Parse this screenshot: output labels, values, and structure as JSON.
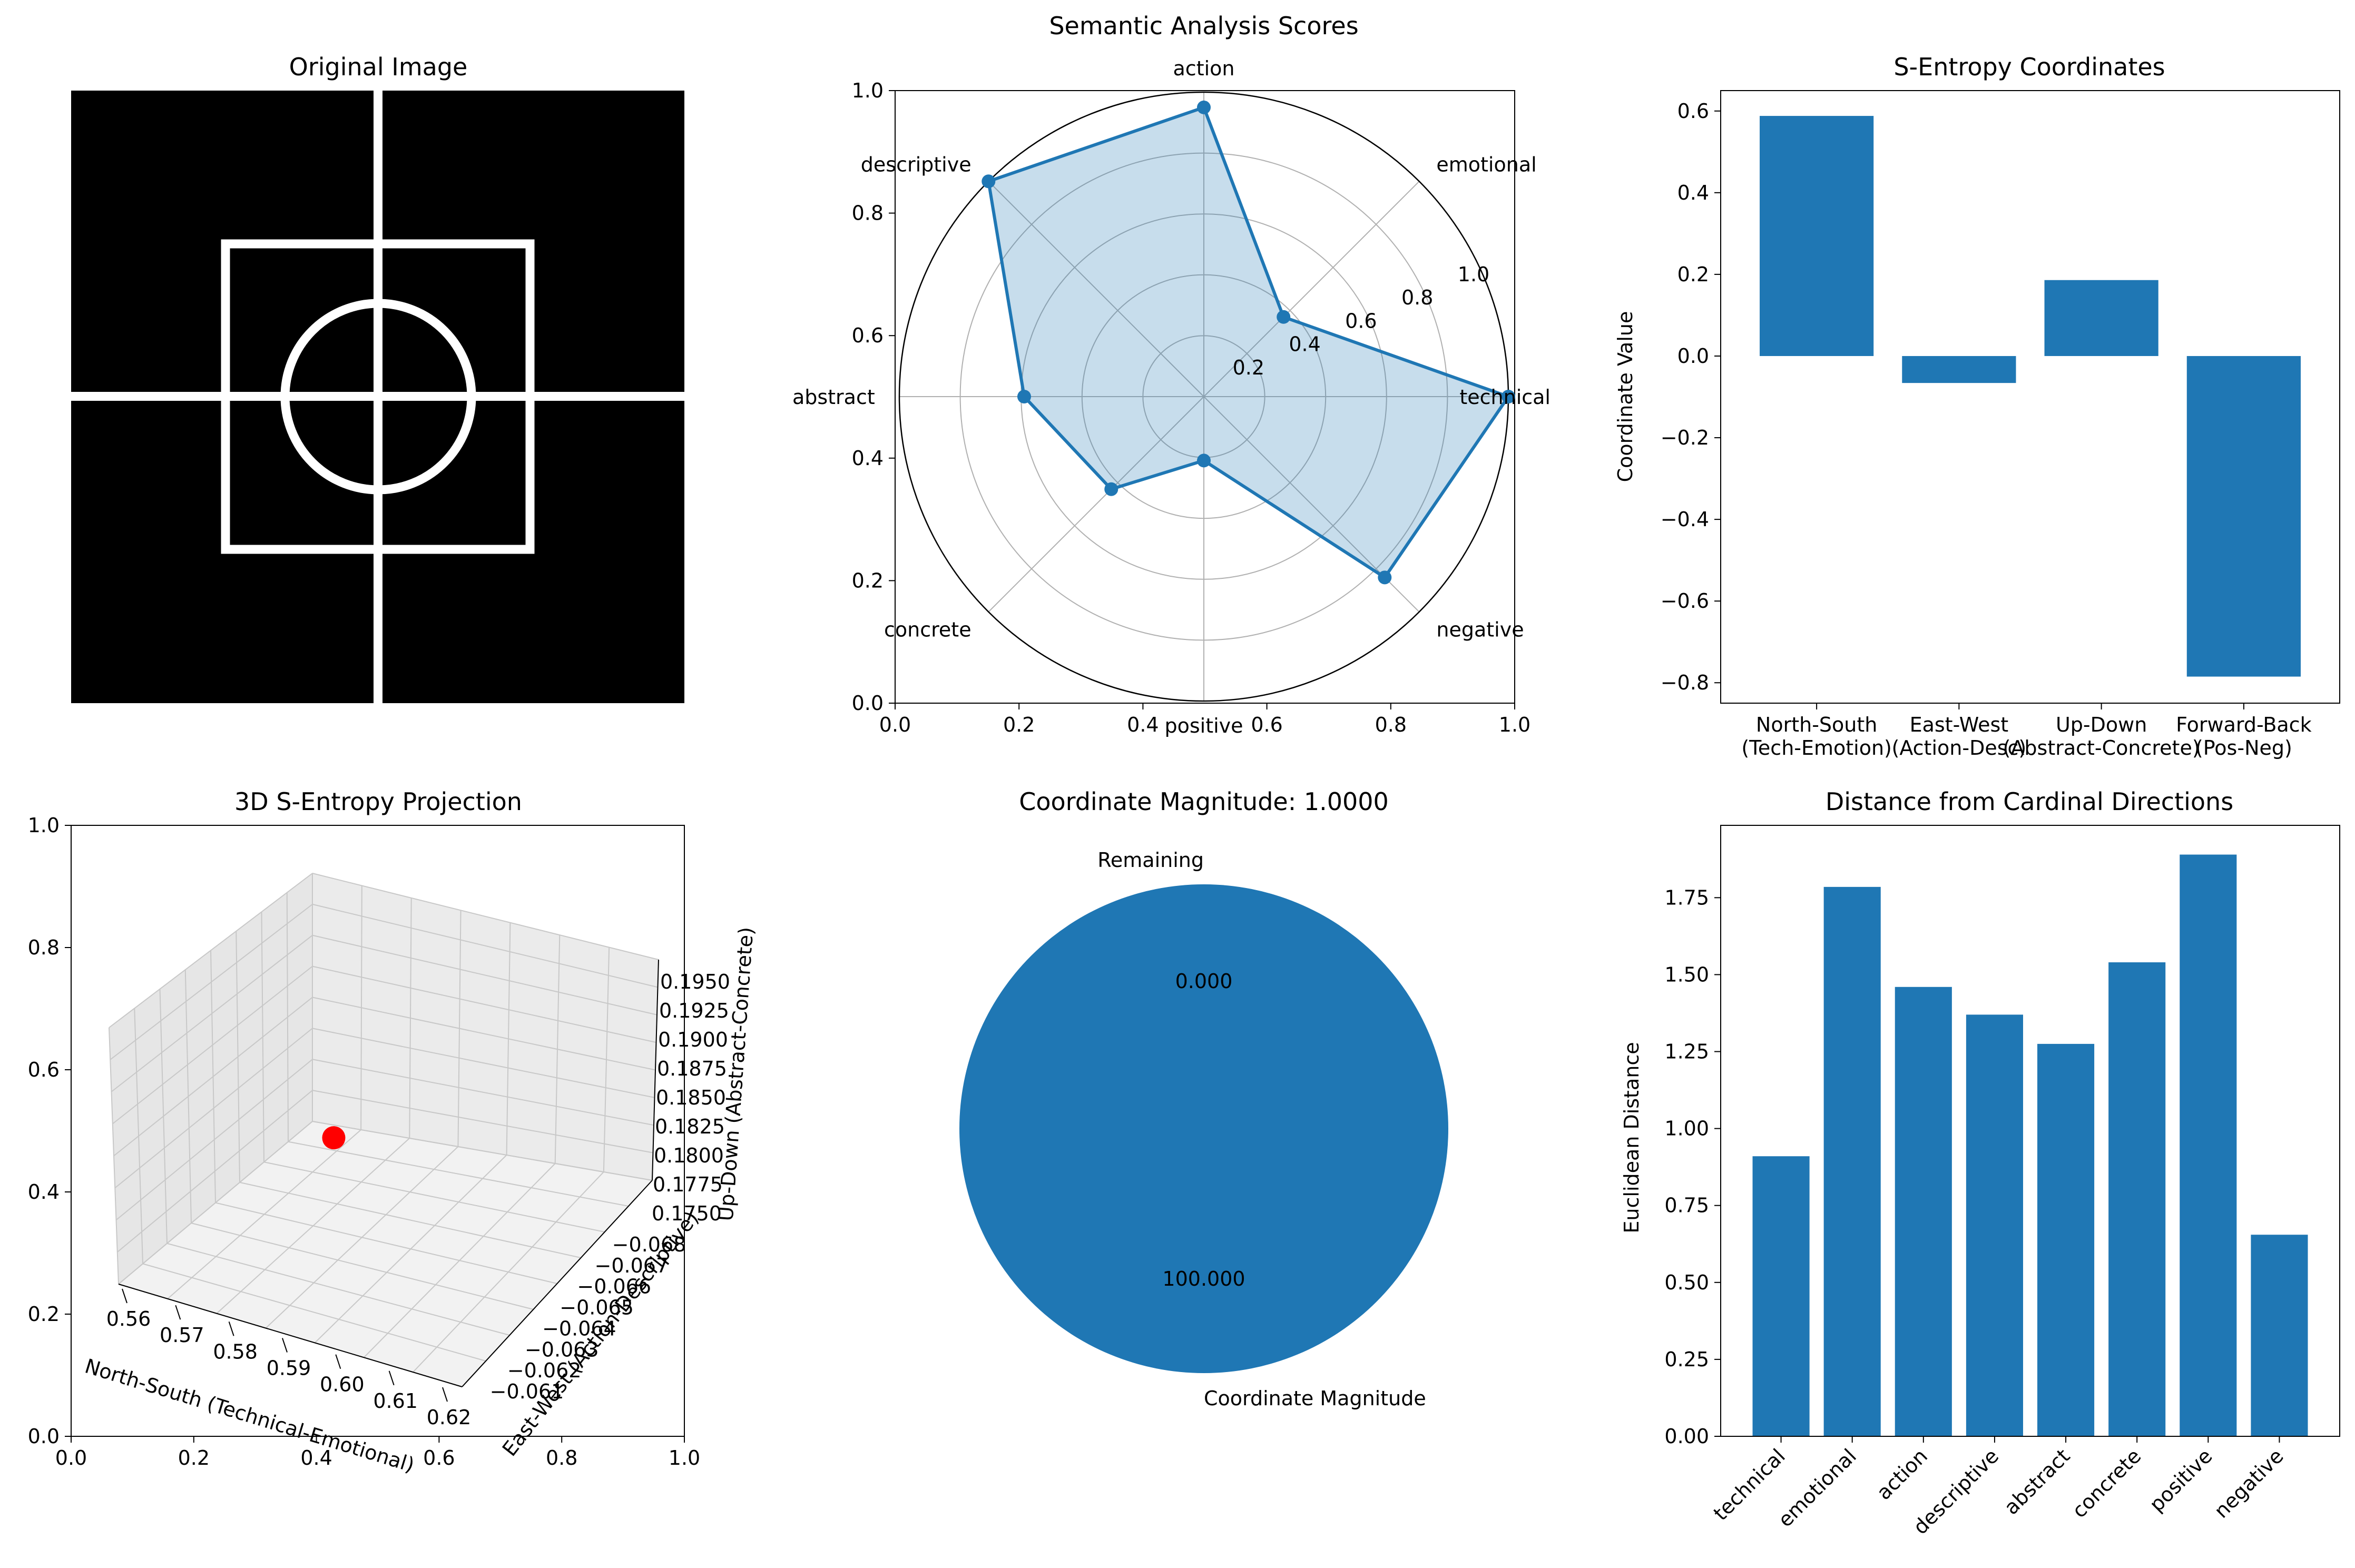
{
  "chart_data": [
    {
      "type": "image",
      "title": "Original Image"
    },
    {
      "type": "radar",
      "title": "Semantic Analysis Scores",
      "categories": [
        "technical",
        "emotional",
        "action",
        "descriptive",
        "abstract",
        "concrete",
        "positive",
        "negative"
      ],
      "values": [
        1.0,
        0.37,
        0.95,
        1.0,
        0.59,
        0.43,
        0.21,
        0.84
      ],
      "radial_ticks": [
        "0.2",
        "0.4",
        "0.6",
        "0.8",
        "1.0"
      ],
      "radial_range": [
        0,
        1.0
      ],
      "color": "#1f77b4",
      "background_axis": {
        "xlim": [
          0,
          1
        ],
        "ylim": [
          0,
          1
        ],
        "xticks": [
          "0.0",
          "0.2",
          "0.4",
          "0.6",
          "0.8",
          "1.0"
        ],
        "yticks": [
          "0.0",
          "0.2",
          "0.4",
          "0.6",
          "0.8",
          "1.0"
        ]
      }
    },
    {
      "type": "bar",
      "title": "S-Entropy Coordinates",
      "categories": [
        [
          "North-South",
          "(Tech-Emotion)"
        ],
        [
          "East-West",
          "(Action-Desc)"
        ],
        [
          "Up-Down",
          "(Abstract-Concrete)"
        ],
        [
          "Forward-Back",
          "(Pos-Neg)"
        ]
      ],
      "values": [
        0.588,
        -0.066,
        0.186,
        -0.785
      ],
      "ylabel": "Coordinate Value",
      "ylim": [
        -0.85,
        0.65
      ],
      "yticks": [
        "0.6",
        "0.4",
        "0.2",
        "0.0",
        "−0.2",
        "−0.4",
        "−0.6",
        "−0.8"
      ],
      "color": "#1f77b4"
    },
    {
      "type": "scatter3d",
      "title": "3D S-Entropy Projection",
      "point": {
        "x": 0.588,
        "y": -0.066,
        "z": 0.186
      },
      "xlabel": "North-South (Technical-Emotional)",
      "ylabel": "East-West (Action-Descriptive)",
      "zlabel": "Up-Down (Abstract-Concrete)",
      "xticks": [
        "0.56",
        "0.57",
        "0.58",
        "0.59",
        "0.60",
        "0.61",
        "0.62"
      ],
      "yticks": [
        "−0.061",
        "−0.062",
        "−0.063",
        "−0.064",
        "−0.065",
        "−0.066",
        "−0.067",
        "−0.068"
      ],
      "zticks": [
        "0.1950",
        "0.1925",
        "0.1900",
        "0.1875",
        "0.1850",
        "0.1825",
        "0.1800",
        "0.1775",
        "0.1750"
      ],
      "frame_xticks": [
        "0.0",
        "0.2",
        "0.4",
        "0.6",
        "0.8",
        "1.0"
      ],
      "frame_yticks": [
        "0.0",
        "0.2",
        "0.4",
        "0.6",
        "0.8",
        "1.0"
      ],
      "point_color": "#ff0000"
    },
    {
      "type": "pie",
      "title": "Coordinate Magnitude: 1.0000",
      "labels": [
        "Coordinate Magnitude",
        "Remaining"
      ],
      "values": [
        100.0,
        0.0
      ],
      "pct_labels": [
        "100.000",
        "0.000"
      ],
      "color": "#1f77b4"
    },
    {
      "type": "bar",
      "title": "Distance from Cardinal Directions",
      "categories": [
        "technical",
        "emotional",
        "action",
        "descriptive",
        "abstract",
        "concrete",
        "positive",
        "negative"
      ],
      "values": [
        0.91,
        1.785,
        1.46,
        1.37,
        1.275,
        1.54,
        1.89,
        0.655
      ],
      "ylabel": "Euclidean Distance",
      "ylim": [
        0,
        1.985
      ],
      "yticks": [
        "0.00",
        "0.25",
        "0.50",
        "0.75",
        "1.00",
        "1.25",
        "1.50",
        "1.75"
      ],
      "color": "#1f77b4"
    }
  ]
}
